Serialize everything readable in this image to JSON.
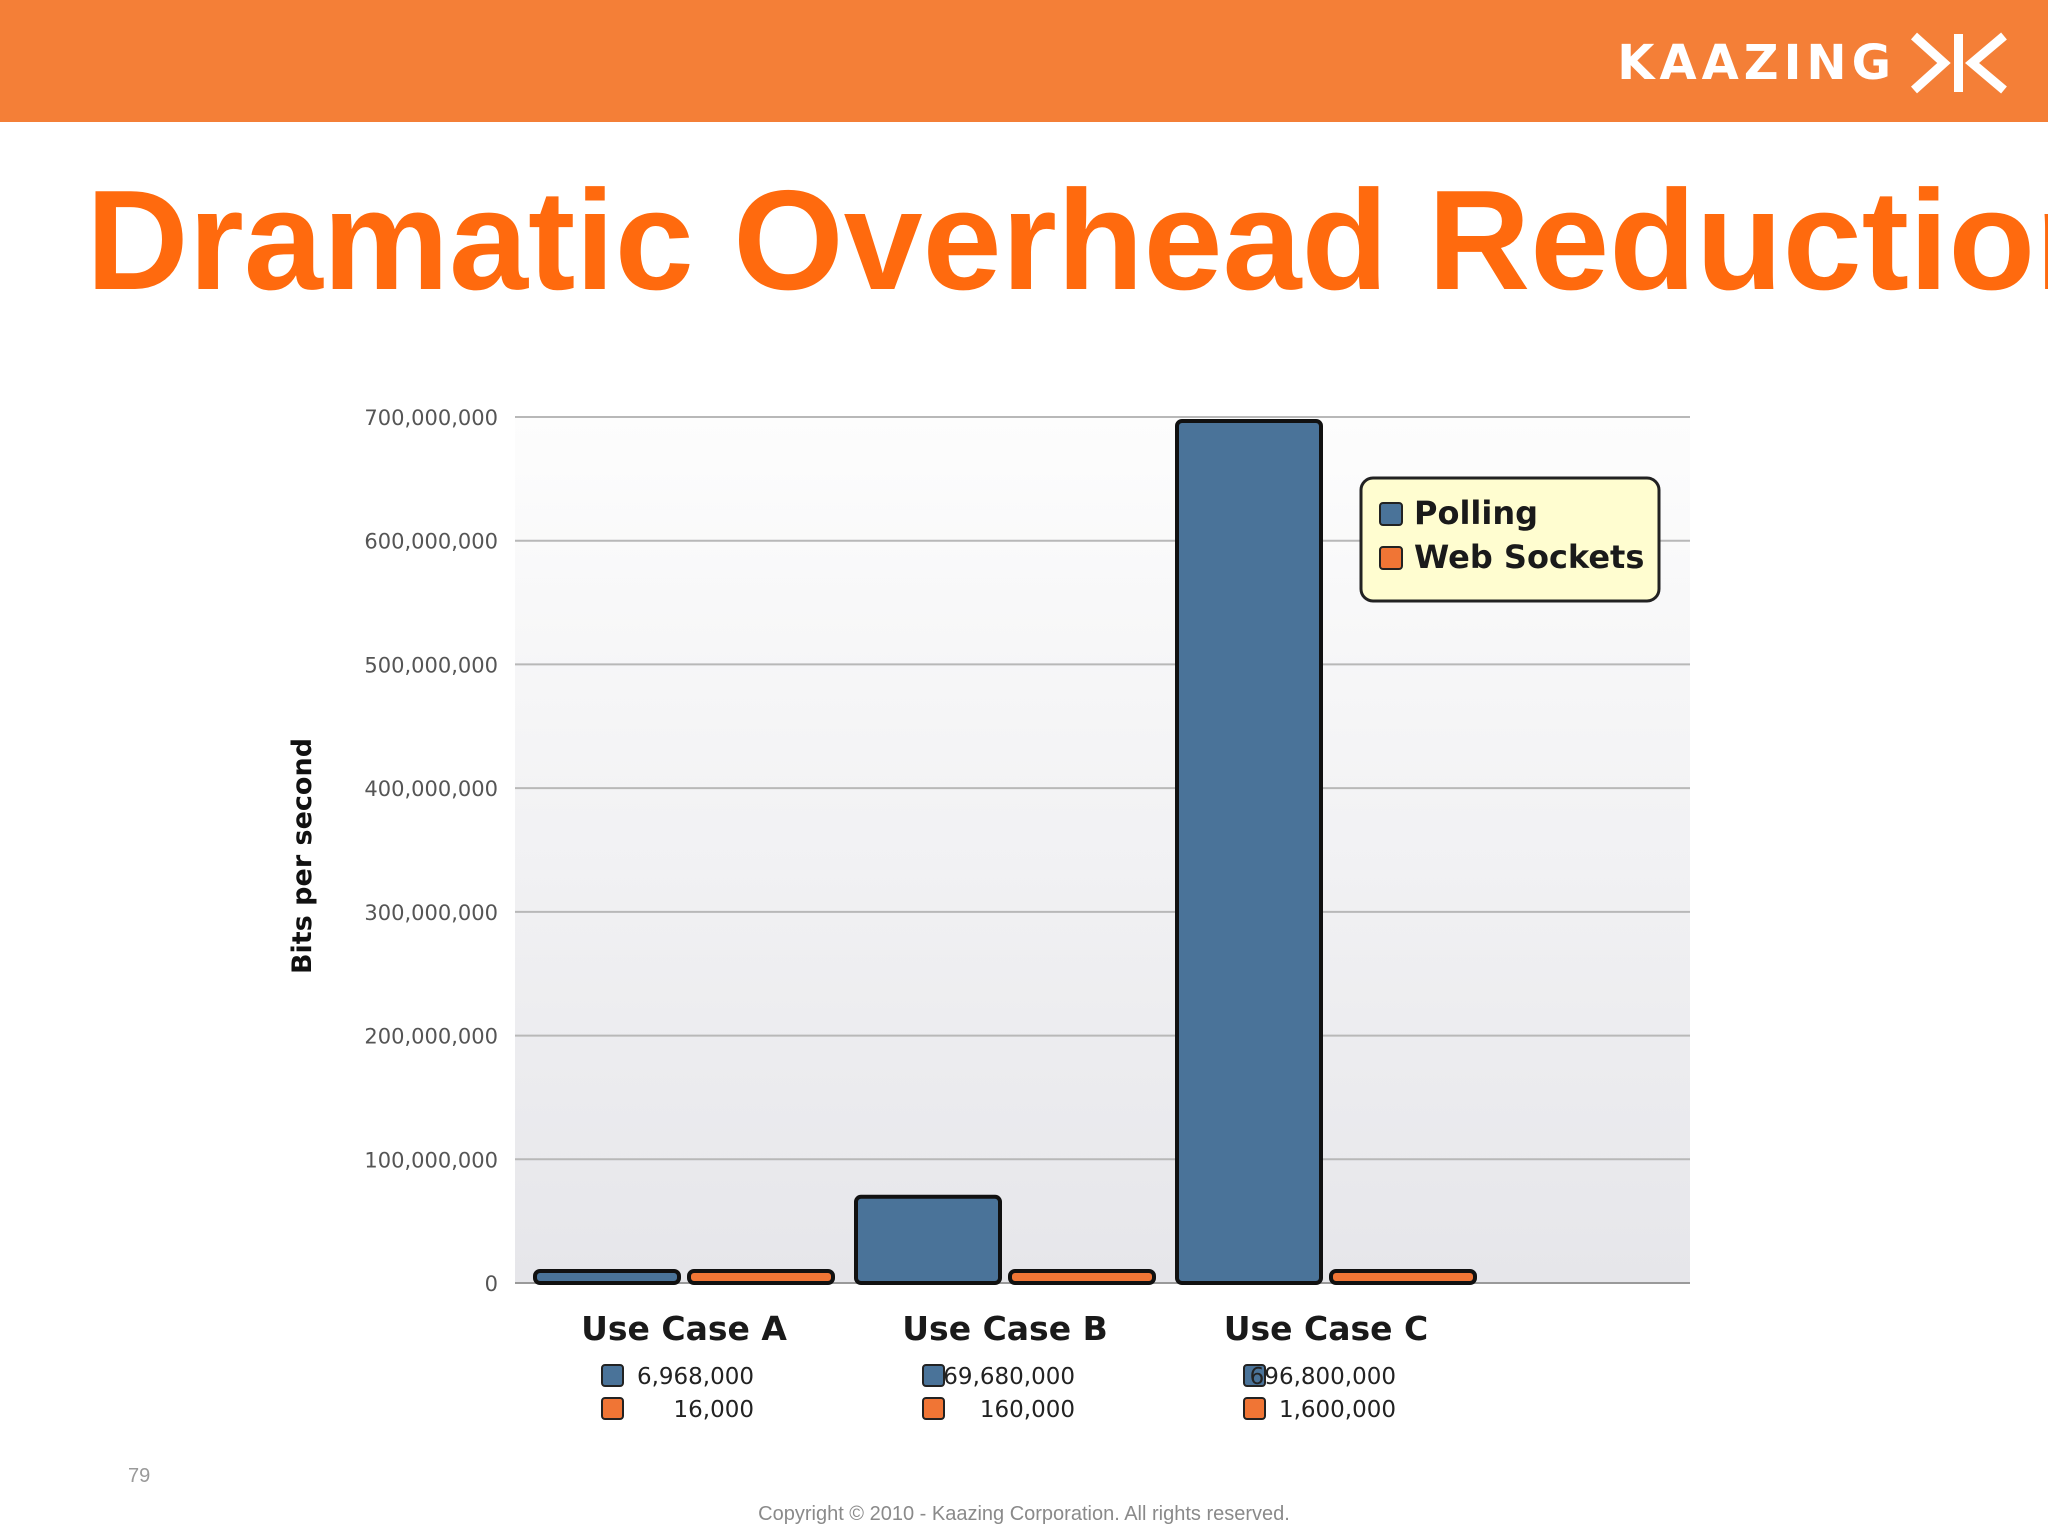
{
  "header": {
    "brand": "KAAZING",
    "accent_color": "#f47f37",
    "logo_icon": "kaazing-k-logo-icon"
  },
  "slide": {
    "title": "Dramatic Overhead Reduction",
    "title_color": "#ff6a0e",
    "number": "79",
    "copyright": "Copyright © 2010 - Kaazing Corporation. All rights reserved."
  },
  "chart_data": {
    "type": "bar",
    "title": "",
    "xlabel": "",
    "ylabel": "Bits per second",
    "ylim": [
      0,
      700000000
    ],
    "yticks": [
      0,
      100000000,
      200000000,
      300000000,
      400000000,
      500000000,
      600000000,
      700000000
    ],
    "ytick_labels": [
      "0",
      "100,000,000",
      "200,000,000",
      "300,000,000",
      "400,000,000",
      "500,000,000",
      "600,000,000",
      "700,000,000"
    ],
    "grid": true,
    "legend_position": "top-right",
    "categories": [
      "Use Case A",
      "Use Case B",
      "Use Case C"
    ],
    "series": [
      {
        "name": "Polling",
        "color": "#4a7399",
        "values": [
          6968000,
          69680000,
          696800000
        ],
        "value_labels": [
          "6,968,000",
          "69,680,000",
          "696,800,000"
        ]
      },
      {
        "name": "Web Sockets",
        "color": "#f07535",
        "values": [
          16000,
          160000,
          1600000
        ],
        "value_labels": [
          "16,000",
          "160,000",
          "1,600,000"
        ]
      }
    ]
  }
}
